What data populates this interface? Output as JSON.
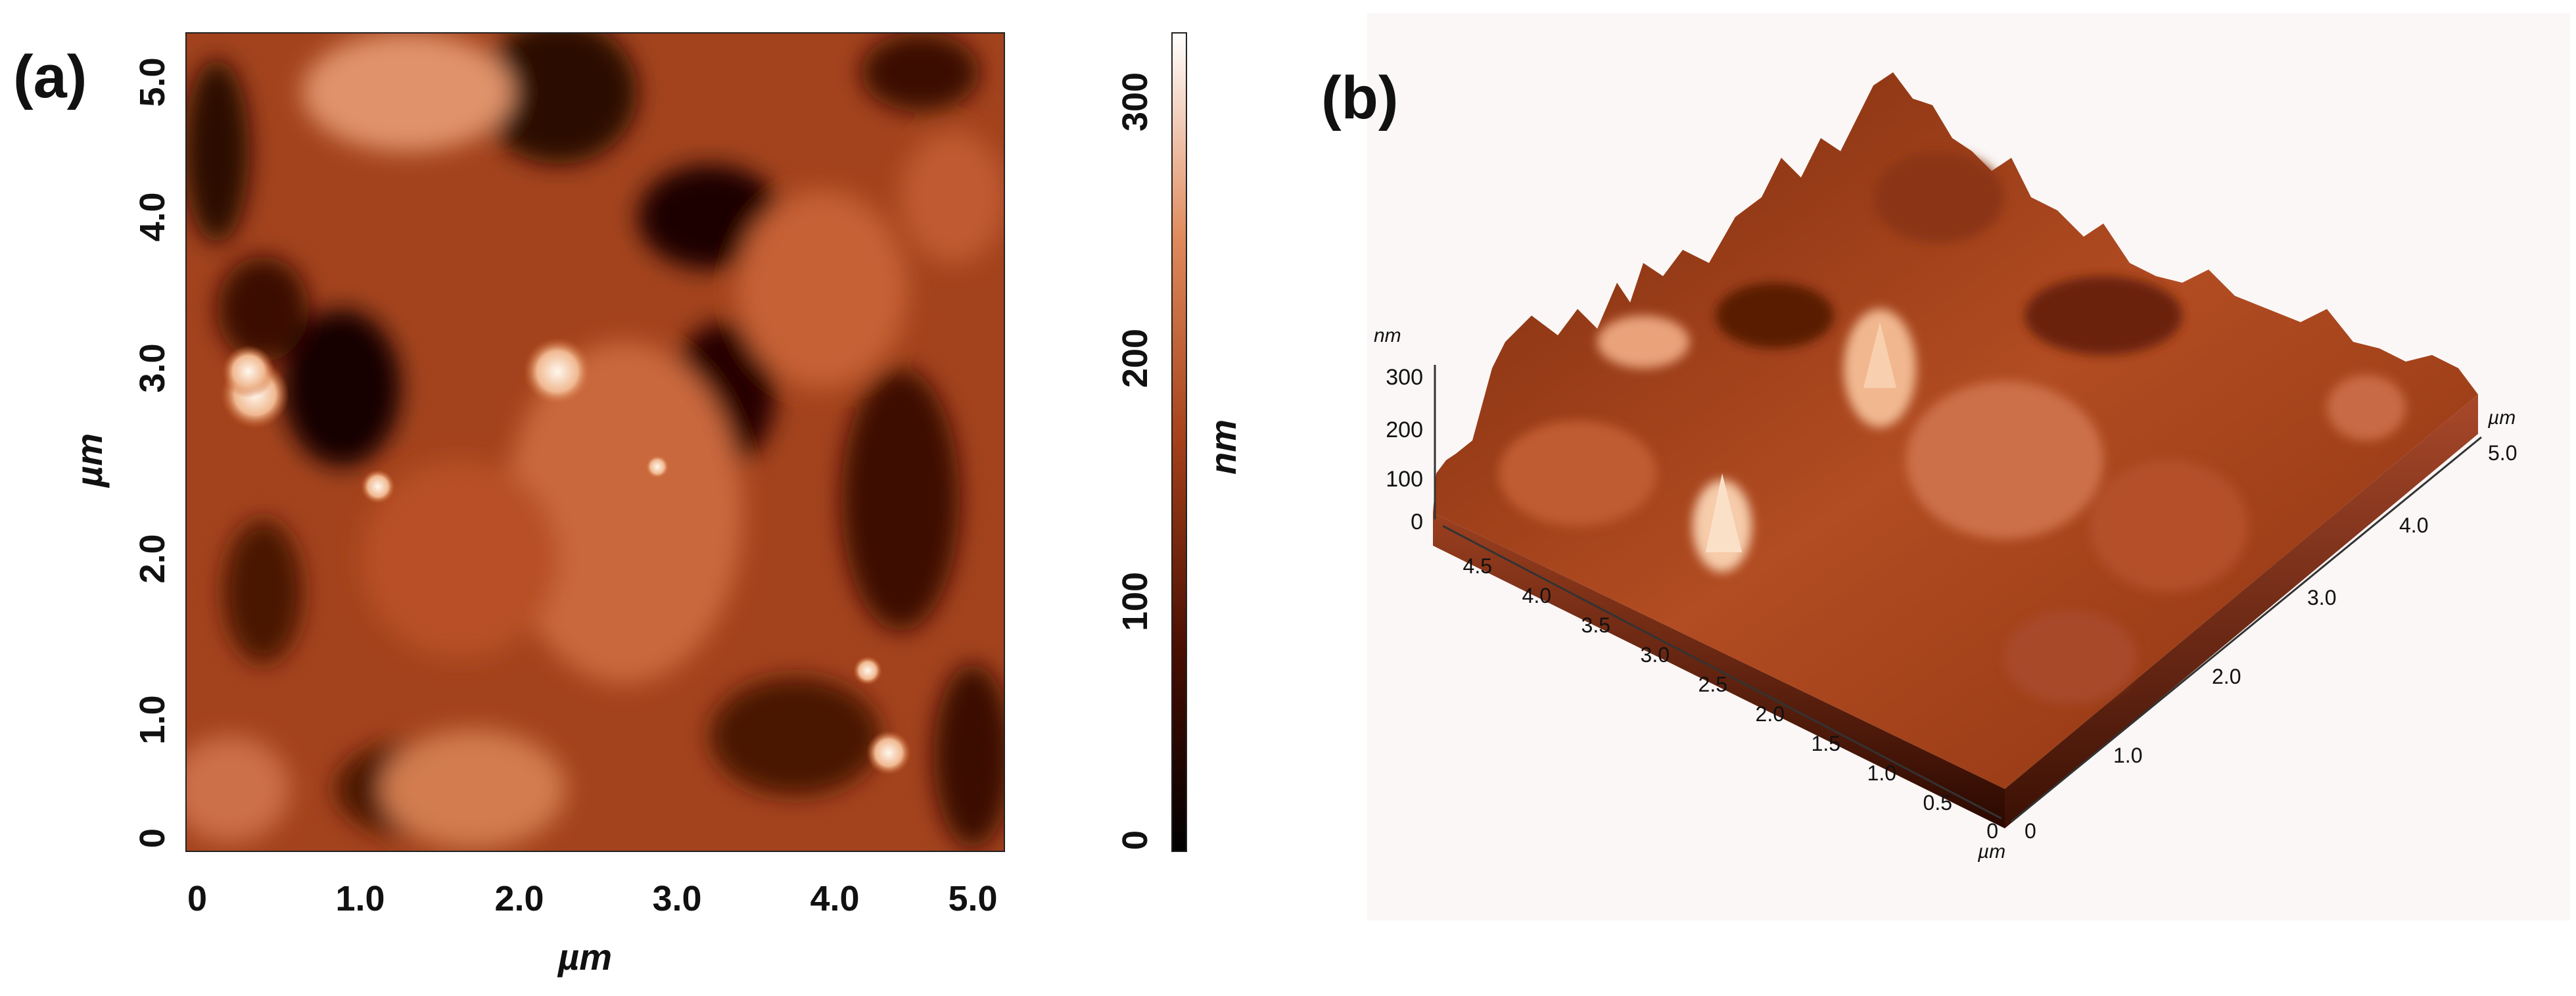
{
  "panel_a": {
    "label": "(a)",
    "x_ticks": [
      "0",
      "1.0",
      "2.0",
      "3.0",
      "4.0",
      "5.0"
    ],
    "y_ticks": [
      "0",
      "1.0",
      "2.0",
      "3.0",
      "4.0",
      "5.0"
    ],
    "x_label": "µm",
    "y_label": "µm",
    "colorbar": {
      "ticks": [
        "0",
        "100",
        "200",
        "300"
      ],
      "label": "nm"
    }
  },
  "panel_b": {
    "label": "(b)",
    "z_unit": "nm",
    "z_ticks": [
      "300",
      "200",
      "100",
      "0"
    ],
    "left_axis_ticks": [
      "4.5",
      "4.0",
      "3.5",
      "3.0",
      "2.5",
      "2.0",
      "1.5",
      "1.0",
      "0.5",
      "0"
    ],
    "right_axis_ticks": [
      "0",
      "1.0",
      "2.0",
      "3.0",
      "4.0",
      "5.0"
    ],
    "left_axis_unit": "µm",
    "right_axis_unit": "µm"
  },
  "colors": {
    "dark": "#1a0400",
    "mid": "#a8401c",
    "light": "#fff4e6",
    "ink": "#111111"
  }
}
